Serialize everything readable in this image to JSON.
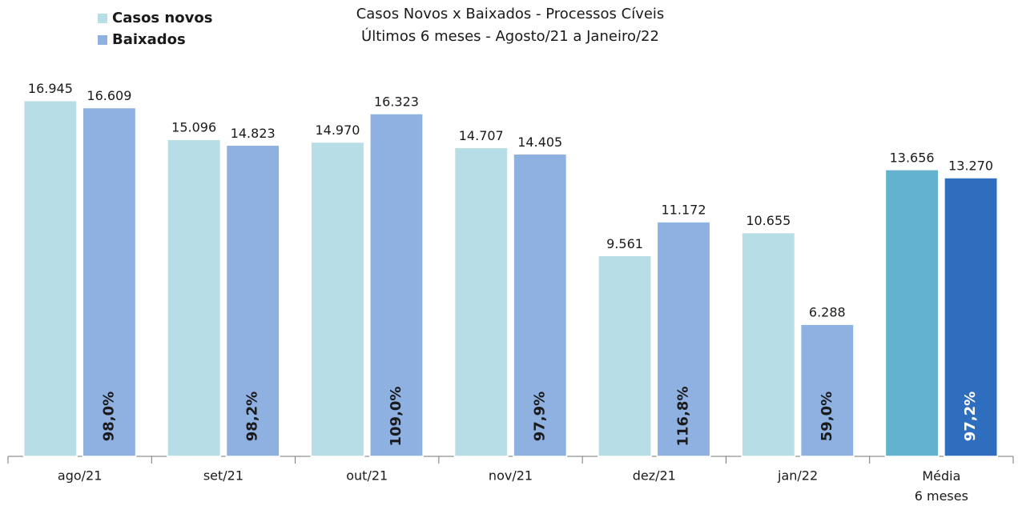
{
  "chart_data": {
    "type": "bar",
    "title": [
      "Casos Novos x Baixados - Processos Cíveis",
      "Últimos 6 meses - Agosto/21 a Janeiro/22"
    ],
    "categories": [
      "ago/21",
      "set/21",
      "out/21",
      "nov/21",
      "dez/21",
      "jan/22",
      "Média\n6 meses"
    ],
    "series": [
      {
        "name": "Casos novos",
        "color": "#b7dde6",
        "colors": [
          "#b7dde6",
          "#b7dde6",
          "#b7dde6",
          "#b7dde6",
          "#b7dde6",
          "#b7dde6",
          "#63b3cf"
        ],
        "values": [
          16945,
          15096,
          14970,
          14707,
          9561,
          10655,
          13656
        ],
        "value_labels": [
          "16.945",
          "15.096",
          "14.970",
          "14.707",
          "9.561",
          "10.655",
          "13.656"
        ]
      },
      {
        "name": "Baixados",
        "color": "#8eb1e2",
        "colors": [
          "#8eb1e2",
          "#8eb1e2",
          "#8eb1e2",
          "#8eb1e2",
          "#8eb1e2",
          "#8eb1e2",
          "#2f6ebe"
        ],
        "values": [
          16609,
          14823,
          16323,
          14405,
          11172,
          6288,
          13270
        ],
        "value_labels": [
          "16.609",
          "14.823",
          "16.323",
          "14.405",
          "11.172",
          "6.288",
          "13.270"
        ]
      }
    ],
    "annotations": [
      "98,0%",
      "98,2%",
      "109,0%",
      "97,9%",
      "116,8%",
      "59,0%",
      "97,2%"
    ],
    "ylim": [
      0,
      18000
    ],
    "legend": "top-left"
  }
}
